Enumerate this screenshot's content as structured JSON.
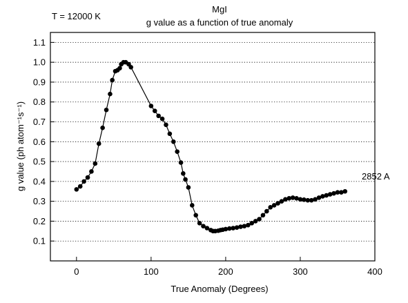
{
  "chart_data": {
    "type": "line",
    "title": "MgI",
    "subtitle": "g value as a function of true anomaly",
    "corner_label": "T = 12000 K",
    "xlabel": "True Anomaly (Degrees)",
    "ylabel": "g value (ph atom⁻¹s⁻¹)",
    "xlim": [
      -35,
      400
    ],
    "ylim": [
      0,
      1.15
    ],
    "x_ticks": [
      0,
      100,
      200,
      300,
      400
    ],
    "y_ticks": [
      0.1,
      0.2,
      0.3,
      0.4,
      0.5,
      0.6,
      0.7,
      0.8,
      0.9,
      1.0,
      1.1
    ],
    "x_tick_labels": [
      "0",
      "100",
      "200",
      "300",
      "400"
    ],
    "y_tick_labels": [
      "0.1",
      "0.2",
      "0.3",
      "0.4",
      "0.5",
      "0.6",
      "0.7",
      "0.8",
      "0.9",
      "1.0",
      "1.1"
    ],
    "grid": "horizontal-dotted",
    "series": [
      {
        "name": "2852 A",
        "color": "#000000",
        "x": [
          0,
          5,
          10,
          15,
          20,
          25,
          30,
          35,
          40,
          45,
          48,
          52,
          55,
          58,
          60,
          63,
          66,
          70,
          73,
          100,
          105,
          110,
          115,
          120,
          125,
          130,
          135,
          140,
          143,
          146,
          150,
          155,
          160,
          165,
          170,
          175,
          180,
          183,
          186,
          190,
          193,
          196,
          200,
          205,
          210,
          215,
          220,
          225,
          230,
          235,
          240,
          245,
          250,
          255,
          260,
          265,
          270,
          275,
          280,
          285,
          290,
          295,
          300,
          305,
          310,
          315,
          320,
          325,
          330,
          335,
          340,
          345,
          350,
          355,
          360
        ],
        "y": [
          0.36,
          0.375,
          0.4,
          0.42,
          0.45,
          0.49,
          0.59,
          0.67,
          0.76,
          0.84,
          0.91,
          0.955,
          0.96,
          0.97,
          0.99,
          1.0,
          1.0,
          0.99,
          0.975,
          0.78,
          0.755,
          0.73,
          0.715,
          0.685,
          0.64,
          0.6,
          0.55,
          0.495,
          0.44,
          0.41,
          0.37,
          0.28,
          0.23,
          0.19,
          0.175,
          0.165,
          0.155,
          0.15,
          0.15,
          0.152,
          0.155,
          0.157,
          0.16,
          0.163,
          0.165,
          0.168,
          0.172,
          0.175,
          0.18,
          0.19,
          0.2,
          0.21,
          0.23,
          0.25,
          0.27,
          0.28,
          0.29,
          0.3,
          0.31,
          0.315,
          0.318,
          0.315,
          0.31,
          0.308,
          0.305,
          0.305,
          0.31,
          0.318,
          0.325,
          0.33,
          0.335,
          0.34,
          0.345,
          0.345,
          0.35
        ]
      }
    ]
  }
}
